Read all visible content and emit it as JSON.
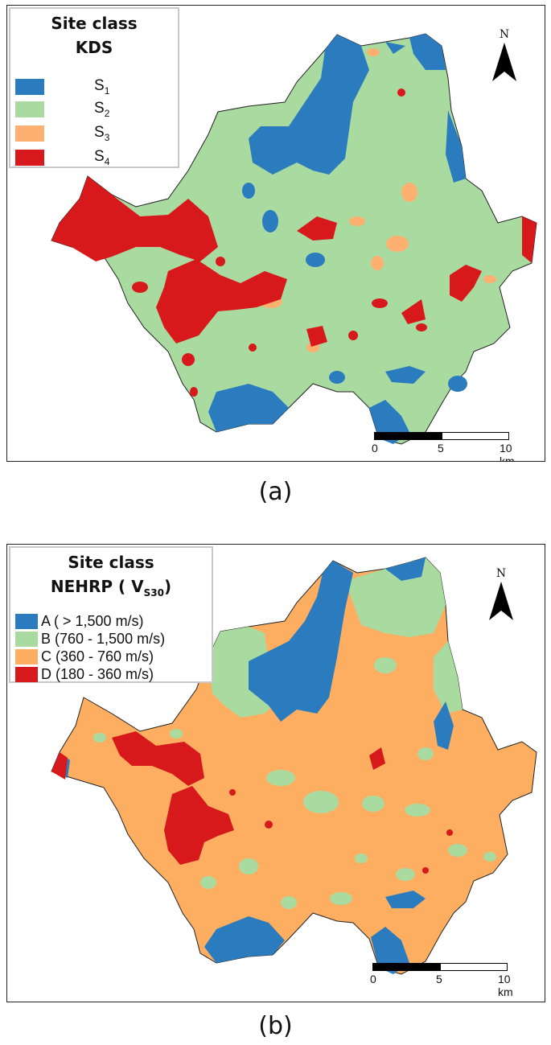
{
  "colors": {
    "s1": "#2b7bbf",
    "s2": "#a9dba1",
    "s3": "#fdb06f",
    "s4": "#d7191c",
    "nehrp_a": "#2b7bbf",
    "nehrp_b": "#a9dba1",
    "nehrp_c": "#fdae61",
    "nehrp_d": "#d7191c"
  },
  "panel_a": {
    "legend": {
      "title_line1": "Site class",
      "title_line2": "KDS",
      "items": [
        {
          "label": "S",
          "sub": "1",
          "color": "#2b7bbf"
        },
        {
          "label": "S",
          "sub": "2",
          "color": "#a9dba1"
        },
        {
          "label": "S",
          "sub": "3",
          "color": "#fdb06f"
        },
        {
          "label": "S",
          "sub": "4",
          "color": "#d7191c"
        }
      ]
    },
    "north_label": "N",
    "scale": {
      "ticks": [
        "0",
        "5",
        "10 km"
      ]
    },
    "caption": "(a)"
  },
  "panel_b": {
    "legend": {
      "title_line1": "Site class",
      "title_line2": "NEHRP ( V",
      "title_sub": "S30",
      "title_end": ")",
      "items": [
        {
          "label": "A ( > 1,500 m/s)",
          "color": "#2b7bbf"
        },
        {
          "label": "B (760 - 1,500 m/s)",
          "color": "#a9dba1"
        },
        {
          "label": "C (360 - 760 m/s)",
          "color": "#fdae61"
        },
        {
          "label": "D (180 - 360 m/s)",
          "color": "#d7191c"
        }
      ]
    },
    "north_label": "N",
    "scale": {
      "ticks": [
        "0",
        "5",
        "10 km"
      ]
    },
    "caption": "(b)"
  }
}
